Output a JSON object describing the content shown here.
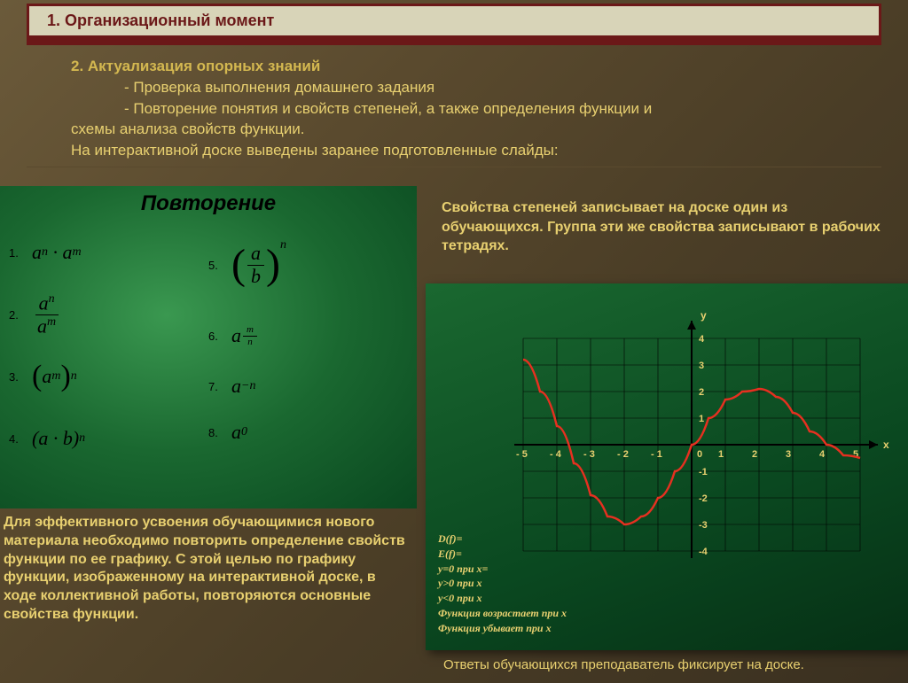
{
  "header": {
    "title": "1. Организационный момент",
    "bg_color": "#d8d4b8",
    "border_color": "#6b1818",
    "text_color": "#6b1818"
  },
  "section2": {
    "heading": "2. Актуализация опорных знаний",
    "line1": "- Проверка выполнения домашнего задания",
    "line2": "- Повторение понятия и свойств степеней, а также определения функции и",
    "line3": "схемы анализа свойств функции.",
    "line4": "На интерактивной доске выведены заранее подготовленные слайды:",
    "text_color": "#e8d070"
  },
  "green_panel": {
    "title": "Повторение",
    "formulas": {
      "n1": "1.",
      "n2": "2.",
      "n3": "3.",
      "n4": "4.",
      "n5": "5.",
      "n6": "6.",
      "n7": "7.",
      "n8": "8."
    },
    "gradient_inner": "#3a9850",
    "gradient_outer": "#0a4820"
  },
  "right_note": "Свойства степеней записывает на доске один из обучающихся. Группа эти же свойства записывают в рабочих тетрадях.",
  "chart": {
    "type": "line",
    "xlim": [
      -5,
      5
    ],
    "ylim": [
      -4,
      4
    ],
    "xtick_step": 1,
    "ytick_step": 1,
    "xticks_labels": [
      "- 5",
      "- 4",
      "- 3",
      "- 2",
      "-1",
      "0",
      "1",
      "2",
      "3",
      "4",
      "5"
    ],
    "yticks_labels": [
      "-4",
      "-3",
      "-2",
      "-1",
      "1",
      "2",
      "3",
      "4"
    ],
    "x_axis_label": "x",
    "y_axis_label": "y",
    "axis_color": "#000000",
    "grid_color": "#000000",
    "label_color": "#e8d070",
    "curve_color": "#e63020",
    "curve_width": 2.5,
    "background": "transparent",
    "curve_points": [
      {
        "x": -5.0,
        "y": 3.2
      },
      {
        "x": -4.5,
        "y": 2.0
      },
      {
        "x": -4.0,
        "y": 0.7
      },
      {
        "x": -3.5,
        "y": -0.7
      },
      {
        "x": -3.0,
        "y": -1.9
      },
      {
        "x": -2.5,
        "y": -2.7
      },
      {
        "x": -2.0,
        "y": -3.0
      },
      {
        "x": -1.5,
        "y": -2.7
      },
      {
        "x": -1.0,
        "y": -2.0
      },
      {
        "x": -0.5,
        "y": -1.0
      },
      {
        "x": 0.0,
        "y": 0.0
      },
      {
        "x": 0.5,
        "y": 1.0
      },
      {
        "x": 1.0,
        "y": 1.7
      },
      {
        "x": 1.5,
        "y": 2.0
      },
      {
        "x": 2.0,
        "y": 2.1
      },
      {
        "x": 2.5,
        "y": 1.8
      },
      {
        "x": 3.0,
        "y": 1.2
      },
      {
        "x": 3.5,
        "y": 0.5
      },
      {
        "x": 4.0,
        "y": 0.0
      },
      {
        "x": 4.5,
        "y": -0.4
      },
      {
        "x": 5.0,
        "y": -0.5
      }
    ],
    "legend_lines": [
      "D(f)=",
      "E(f)=",
      "y=0 при x=",
      "y>0 при x",
      "y<0 при x",
      "Функция возрастает при x",
      "Функция убывает при x"
    ]
  },
  "bottom_left": "Для эффективного усвоения обучающимися нового материала необходимо повторить определение свойств функции по ее графику. С этой целью по графику функции, изображенному на интерактивной доске, в ходе коллективной работы, повторяются основные свойства функции.",
  "bottom_right": "Ответы обучающихся преподаватель фиксирует на доске."
}
